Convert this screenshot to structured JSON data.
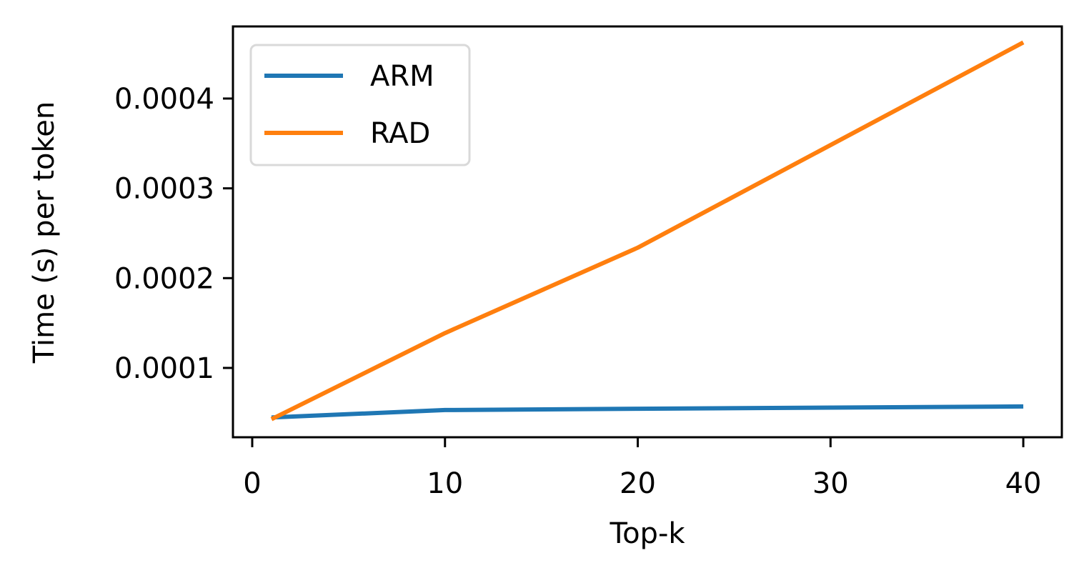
{
  "chart_data": {
    "type": "line",
    "title": "",
    "xlabel": "Top-k",
    "ylabel": "Time (s) per token",
    "xlim": [
      -1,
      42
    ],
    "ylim": [
      2.28e-05,
      0.0004803
    ],
    "x_ticks": [
      0,
      10,
      20,
      30,
      40
    ],
    "y_ticks": [
      0.0001,
      0.0002,
      0.0003,
      0.0004
    ],
    "y_tick_labels": [
      "0.0001",
      "0.0002",
      "0.0003",
      "0.0004"
    ],
    "grid": false,
    "legend_position": "upper-left",
    "series": [
      {
        "name": "ARM",
        "color": "#1f77b4",
        "x": [
          1,
          10,
          20,
          40
        ],
        "values": [
          4.48e-05,
          5.31e-05,
          5.45e-05,
          5.71e-05
        ]
      },
      {
        "name": "RAD",
        "color": "#ff7f0e",
        "x": [
          1,
          10,
          20,
          40
        ],
        "values": [
          4.29e-05,
          0.0001388,
          0.0002339,
          0.0004625
        ]
      }
    ]
  }
}
